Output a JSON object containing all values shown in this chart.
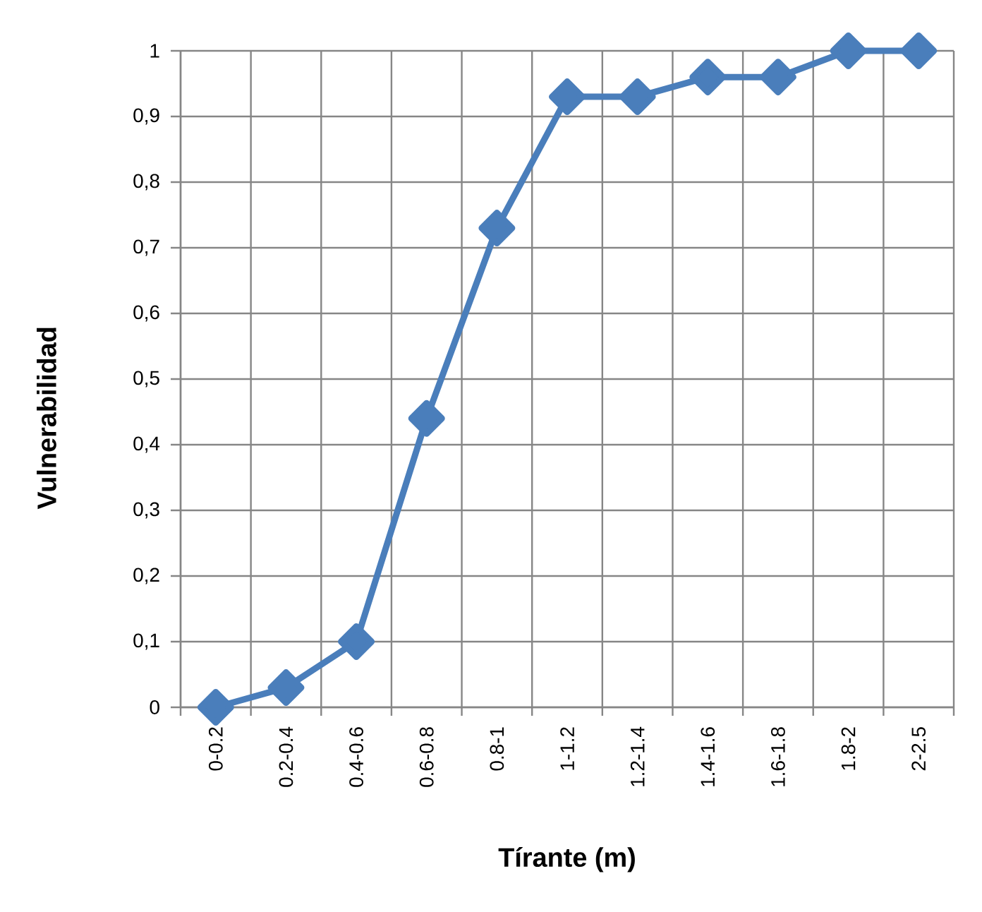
{
  "chart_data": {
    "type": "line",
    "xlabel": "Tírante (m)",
    "ylabel": "Vulnerabilidad",
    "categories": [
      "0-0.2",
      "0.2-0.4",
      "0.4-0.6",
      "0.6-0.8",
      "0.8-1",
      "1-1.2",
      "1.2-1.4",
      "1.4-1.6",
      "1.6-1.8",
      "1.8-2",
      "2-2.5"
    ],
    "values": [
      0,
      0.03,
      0.1,
      0.44,
      0.73,
      0.93,
      0.93,
      0.96,
      0.96,
      1,
      1
    ],
    "color": "#4a7ebb",
    "ylim": [
      0,
      1
    ],
    "yticks": [
      0,
      {
        "value": 0.1,
        "label": "0,1"
      },
      {
        "value": 0.2,
        "label": "0,2"
      },
      {
        "value": 0.3,
        "label": "0,3"
      },
      {
        "value": 0.4,
        "label": "0,4"
      },
      {
        "value": 0.5,
        "label": "0,5"
      },
      {
        "value": 0.6,
        "label": "0,6"
      },
      {
        "value": 0.7,
        "label": "0,7"
      },
      {
        "value": 0.8,
        "label": "0,8"
      },
      {
        "value": 0.9,
        "label": "0,9"
      },
      1
    ],
    "grid": true,
    "marker": "diamond",
    "line_style": "solid"
  }
}
